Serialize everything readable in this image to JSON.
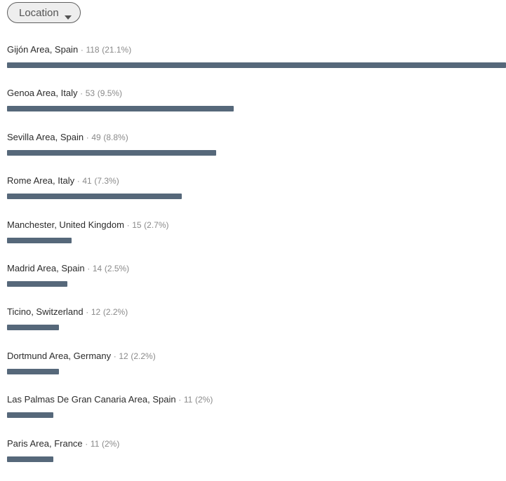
{
  "filter": {
    "label": "Location",
    "icon": "caret-down-icon"
  },
  "colors": {
    "bar": "#56687a",
    "pill_border": "#5f5f5f",
    "pill_bg": "#eeeeee"
  },
  "separator": "·",
  "max_count": 118,
  "items": [
    {
      "name": "Gijón Area, Spain",
      "count": 118,
      "percent": "21.1%",
      "fill_fraction": 1.0
    },
    {
      "name": "Genoa Area, Italy",
      "count": 53,
      "percent": "9.5%",
      "fill_fraction": 0.454
    },
    {
      "name": "Sevilla Area, Spain",
      "count": 49,
      "percent": "8.8%",
      "fill_fraction": 0.419
    },
    {
      "name": "Rome Area, Italy",
      "count": 41,
      "percent": "7.3%",
      "fill_fraction": 0.35
    },
    {
      "name": "Manchester, United Kingdom",
      "count": 15,
      "percent": "2.7%",
      "fill_fraction": 0.13
    },
    {
      "name": "Madrid Area, Spain",
      "count": 14,
      "percent": "2.5%",
      "fill_fraction": 0.121
    },
    {
      "name": "Ticino, Switzerland",
      "count": 12,
      "percent": "2.2%",
      "fill_fraction": 0.104
    },
    {
      "name": "Dortmund Area, Germany",
      "count": 12,
      "percent": "2.2%",
      "fill_fraction": 0.104
    },
    {
      "name": "Las Palmas De Gran Canaria Area, Spain",
      "count": 11,
      "percent": "2%",
      "fill_fraction": 0.093
    },
    {
      "name": "Paris Area, France",
      "count": 11,
      "percent": "2%",
      "fill_fraction": 0.093
    }
  ]
}
